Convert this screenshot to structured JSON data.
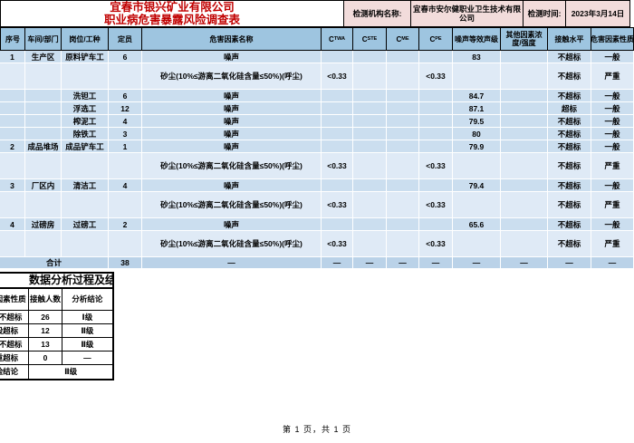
{
  "title": {
    "line1": "宜春市银兴矿业有限公司",
    "line2": "职业病危害暴露风险调查表"
  },
  "info": {
    "org_label": "检测机构名称:",
    "org_value": "宜春市安尔健职业卫生技术有限公司",
    "time_label": "检测时间:",
    "time_value": "2023年3月14日"
  },
  "colors": {
    "title_red": "#c00000",
    "pink": "#f2dcdb",
    "header_blue": "#9ec5e0",
    "row_blue": "#cbdeef",
    "row_light": "#dfeaf6",
    "total_blue": "#bad2e8"
  },
  "main_table": {
    "headers": [
      {
        "t": "序号",
        "nw": 1
      },
      {
        "t": "车间/部门"
      },
      {
        "t": "岗位/工种",
        "nw": 1
      },
      {
        "t": "定员",
        "nw": 1
      },
      {
        "t": "危害因素名称",
        "nw": 1
      },
      {
        "t": "C",
        "sub": "TWA"
      },
      {
        "t": "C",
        "sub": "STE"
      },
      {
        "t": "C",
        "sub": "ME"
      },
      {
        "t": "C",
        "sub": "PE"
      },
      {
        "t": "噪声等效声级"
      },
      {
        "t": "其他因素浓度/强度"
      },
      {
        "t": "接触水平",
        "nw": 1
      },
      {
        "t": "危害因素性质",
        "nw": 1
      }
    ],
    "rows": [
      {
        "kind": "noise",
        "c": [
          "1",
          "生产区",
          "原料铲车工",
          "6",
          "噪声",
          "",
          "",
          "",
          "",
          "83",
          "",
          "不超标",
          "一般"
        ]
      },
      {
        "kind": "dust",
        "c": [
          "",
          "",
          "",
          "",
          "砂尘(10%≤游离二氧化硅含量≤50%)(呼尘)",
          "<0.33",
          "",
          "",
          "<0.33",
          "",
          "",
          "不超标",
          "严重"
        ]
      },
      {
        "kind": "noise",
        "c": [
          "",
          "",
          "洗钽工",
          "6",
          "噪声",
          "",
          "",
          "",
          "",
          "84.7",
          "",
          "不超标",
          "一般"
        ]
      },
      {
        "kind": "noise",
        "c": [
          "",
          "",
          "浮选工",
          "12",
          "噪声",
          "",
          "",
          "",
          "",
          "87.1",
          "",
          "超标",
          "一般"
        ]
      },
      {
        "kind": "noise",
        "c": [
          "",
          "",
          "榨泥工",
          "4",
          "噪声",
          "",
          "",
          "",
          "",
          "79.5",
          "",
          "不超标",
          "一般"
        ]
      },
      {
        "kind": "noise",
        "c": [
          "",
          "",
          "除铁工",
          "3",
          "噪声",
          "",
          "",
          "",
          "",
          "80",
          "",
          "不超标",
          "一般"
        ]
      },
      {
        "kind": "noise",
        "c": [
          "2",
          "成品堆场",
          "成品铲车工",
          "1",
          "噪声",
          "",
          "",
          "",
          "",
          "79.9",
          "",
          "不超标",
          "一般"
        ]
      },
      {
        "kind": "dust",
        "c": [
          "",
          "",
          "",
          "",
          "砂尘(10%≤游离二氧化硅含量≤50%)(呼尘)",
          "<0.33",
          "",
          "",
          "<0.33",
          "",
          "",
          "不超标",
          "严重"
        ]
      },
      {
        "kind": "noise",
        "c": [
          "3",
          "厂区内",
          "清洁工",
          "4",
          "噪声",
          "",
          "",
          "",
          "",
          "79.4",
          "",
          "不超标",
          "一般"
        ]
      },
      {
        "kind": "dust",
        "c": [
          "",
          "",
          "",
          "",
          "砂尘(10%≤游离二氧化硅含量≤50%)(呼尘)",
          "<0.33",
          "",
          "",
          "<0.33",
          "",
          "",
          "不超标",
          "严重"
        ]
      },
      {
        "kind": "noise",
        "c": [
          "4",
          "过磅房",
          "过磅工",
          "2",
          "噪声",
          "",
          "",
          "",
          "",
          "65.6",
          "",
          "不超标",
          "一般"
        ]
      },
      {
        "kind": "dust",
        "c": [
          "",
          "",
          "",
          "",
          "砂尘(10%≤游离二氧化硅含量≤50%)(呼尘)",
          "<0.33",
          "",
          "",
          "<0.33",
          "",
          "",
          "不超标",
          "严重"
        ]
      },
      {
        "kind": "total",
        "c": [
          "合计",
          "38",
          "—",
          "—",
          "—",
          "—",
          "—",
          "—",
          "—",
          "—",
          "—"
        ]
      }
    ]
  },
  "analysis_table": {
    "title": "数据分析过程及结论",
    "headers": [
      "危害因素性质",
      "接触人数",
      "分析结论"
    ],
    "rows": [
      [
        "一般不超标",
        "26",
        "Ⅰ级"
      ],
      [
        "一般超标",
        "12",
        "Ⅱ级"
      ],
      [
        "严重不超标",
        "13",
        "Ⅱ级"
      ],
      [
        "严重超标",
        "0",
        "—"
      ]
    ],
    "result_label": "风险结论",
    "result_value": "Ⅱ级"
  },
  "footer": {
    "text": "第 1 页，共 1 页"
  }
}
